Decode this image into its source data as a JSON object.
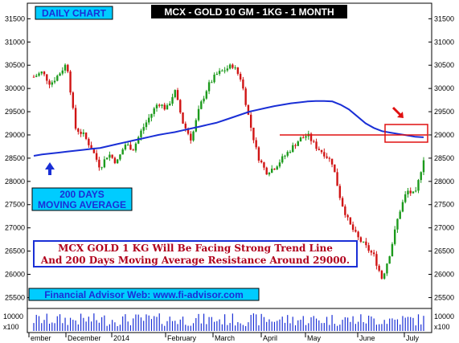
{
  "chart_data": {
    "type": "candlestick",
    "title": "MCX - GOLD 10 GM - 1KG - 1 MONTH",
    "subtitle": "DAILY CHART",
    "x_labels": [
      "ember",
      "December",
      "2014",
      "February",
      "March",
      "April",
      "May",
      "June",
      "July"
    ],
    "y_ticks": [
      25500,
      26000,
      26500,
      27000,
      27500,
      28000,
      28500,
      29000,
      29500,
      30000,
      30500,
      31000,
      31500
    ],
    "ylim": [
      25300,
      31800
    ],
    "volume_ticks": [
      "10000"
    ],
    "volume_unit": "x100",
    "ma_label_line1": "200 DAYS",
    "ma_label_line2": "MOVING AVERAGE",
    "note_line1": "MCX GOLD 1 KG Will Be Facing Strong Trend Line",
    "note_line2": "And 200 Days Moving Average Resistance Around 29000.",
    "footer": "Financial Advisor Web: www.fi-advisor.com",
    "resistance_level": 29000,
    "price_series": {
      "x": [
        0,
        5,
        10,
        15,
        20,
        25,
        30,
        35,
        40,
        45,
        50,
        55,
        60,
        65,
        70,
        75,
        80,
        85,
        90,
        95,
        100,
        105,
        110,
        115,
        120,
        125,
        130,
        135,
        140,
        145,
        150,
        155,
        160,
        165,
        170,
        175,
        180,
        185,
        190,
        195,
        200,
        205,
        210,
        215,
        220,
        225,
        230,
        235
      ],
      "close": [
        30250,
        30350,
        30100,
        30300,
        30550,
        29150,
        29000,
        28700,
        28300,
        28600,
        28400,
        28800,
        28700,
        29100,
        29400,
        29700,
        29550,
        29950,
        29250,
        28900,
        29600,
        30050,
        30300,
        30400,
        30500,
        30200,
        29300,
        28550,
        28200,
        28300,
        28500,
        28700,
        28900,
        29000,
        28750,
        28600,
        28400,
        27600,
        27100,
        26800,
        26600,
        26400,
        25900,
        26500,
        27300,
        27800,
        27700,
        28500
      ],
      "moving_average_200": [
        28550,
        28580,
        28600,
        28620,
        28640,
        28660,
        28680,
        28700,
        28720,
        28760,
        28800,
        28840,
        28880,
        28920,
        28960,
        29000,
        29030,
        29060,
        29100,
        29140,
        29180,
        29220,
        29260,
        29320,
        29380,
        29440,
        29500,
        29540,
        29580,
        29620,
        29650,
        29680,
        29700,
        29720,
        29730,
        29730,
        29720,
        29650,
        29550,
        29400,
        29250,
        29150,
        29080,
        29050,
        29020,
        28990,
        28960,
        28950
      ]
    }
  },
  "colors": {
    "up": "#1c9a1c",
    "down": "#d01414",
    "ma_line": "#1a2fd6",
    "resistance": "#e01010",
    "label_bg": "#00ccff",
    "volume": "#1a2fd6"
  }
}
